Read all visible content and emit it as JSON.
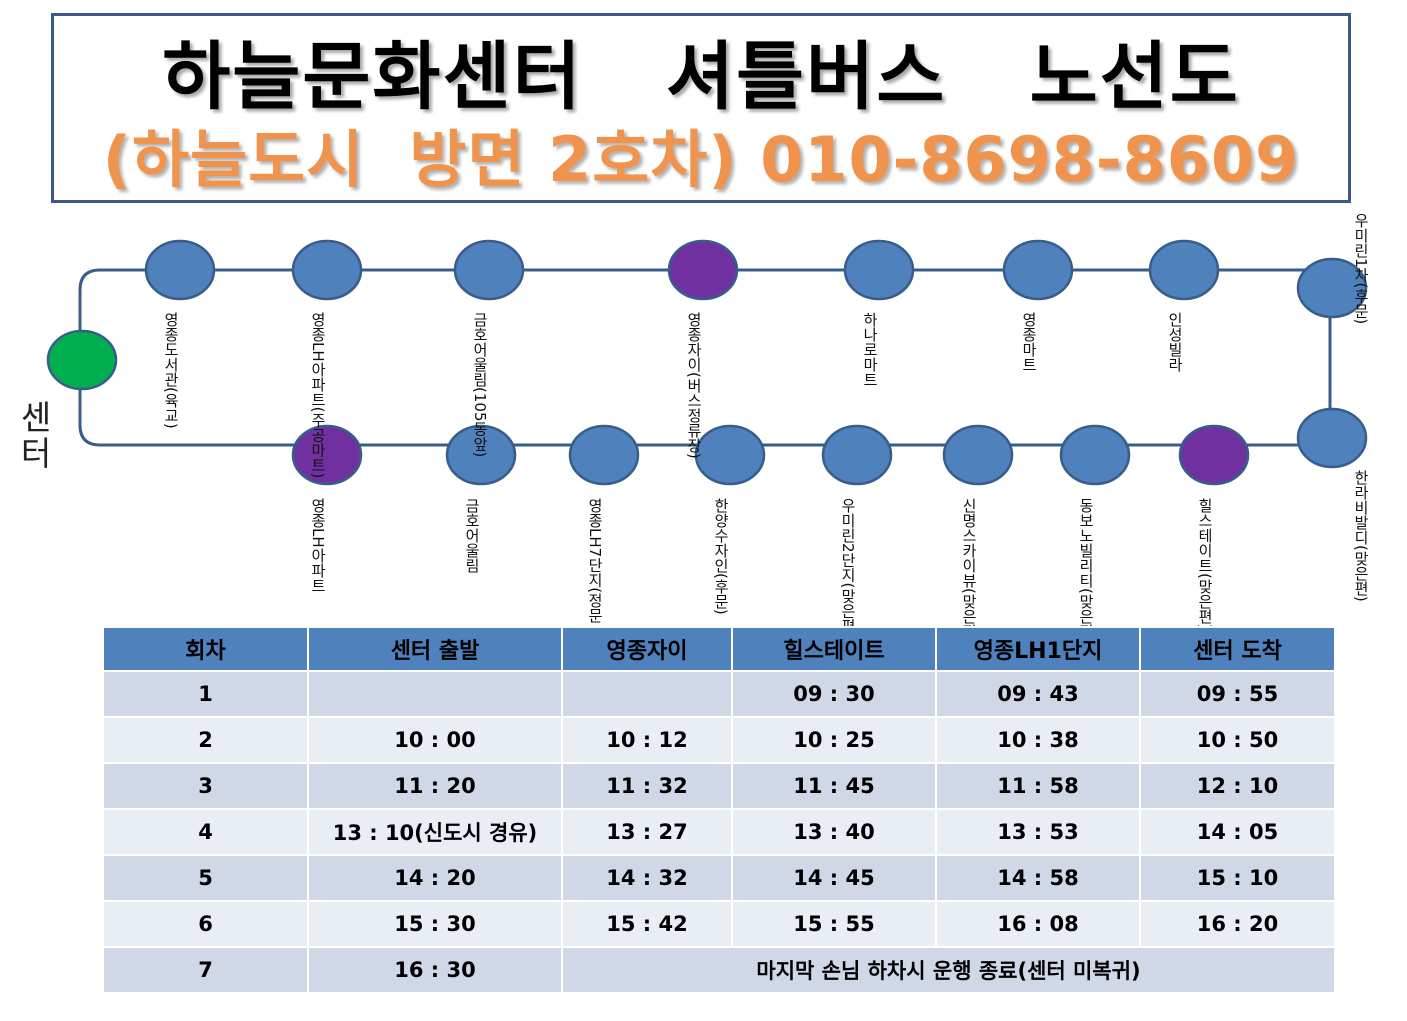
{
  "title": {
    "main": "하늘문화센터   셔틀버스   노선도",
    "sub": "(하늘도시  방면 2호차) 010-8698-8609"
  },
  "colors": {
    "stop": "#4f81bd",
    "hub": "#00b050",
    "timed_stop": "#7030a0",
    "route_line": "#385d8a",
    "title_sub": "#f0944d",
    "table_header": "#4f81bd"
  },
  "route": {
    "center_label": "센터",
    "top_stops": [
      {
        "name": "영종도서관",
        "note": "(육교)",
        "timed": false
      },
      {
        "name": "영종LH아파트",
        "note": "(주공마트)",
        "timed": false
      },
      {
        "name": "금호어울림",
        "note": "(105동앞)",
        "timed": false
      },
      {
        "name": "영종자이",
        "note": "(버스정류장)",
        "timed": true
      },
      {
        "name": "하나로마트",
        "note": "",
        "timed": false
      },
      {
        "name": "영종마트",
        "note": "",
        "timed": false
      },
      {
        "name": "인성빌라",
        "note": "",
        "timed": false
      }
    ],
    "right_stops": [
      {
        "name": "우미린1차",
        "note": "(후문)",
        "timed": false
      },
      {
        "name": "한라비발디",
        "note": "(맞은편)",
        "timed": false
      }
    ],
    "bottom_stops": [
      {
        "name": "영종LH아파트",
        "note": "",
        "timed": true
      },
      {
        "name": "금호어울림",
        "note": "",
        "timed": false
      },
      {
        "name": "영종LH7단지",
        "note": "(정문 맞은편)",
        "timed": false
      },
      {
        "name": "한양수자인",
        "note": "(후문)",
        "timed": false
      },
      {
        "name": "우미린2단지",
        "note": "(맞은편)",
        "timed": false
      },
      {
        "name": "신명스카이뷰",
        "note": "(맞은편)",
        "timed": false
      },
      {
        "name": "동보노빌리티",
        "note": "(맞은편)",
        "timed": false
      },
      {
        "name": "힐스테이트",
        "note": "(맞은편)",
        "timed": true
      }
    ]
  },
  "schedule": {
    "headers": [
      "회차",
      "센터 출발",
      "영종자이",
      "힐스테이트",
      "영종LH1단지",
      "센터 도착"
    ],
    "rows": [
      [
        "1",
        "",
        "",
        "09 : 30",
        "09 : 43",
        "09 : 55"
      ],
      [
        "2",
        "10 : 00",
        "10 : 12",
        "10 : 25",
        "10 : 38",
        "10 : 50"
      ],
      [
        "3",
        "11 : 20",
        "11 : 32",
        "11 : 45",
        "11 : 58",
        "12 : 10"
      ],
      [
        "4",
        "13 : 10(신도시 경유)",
        "13 : 27",
        "13 : 40",
        "13 : 53",
        "14 : 05"
      ],
      [
        "5",
        "14 : 20",
        "14 : 32",
        "14 : 45",
        "14 : 58",
        "15 : 10"
      ],
      [
        "6",
        "15 : 30",
        "15 : 42",
        "15 : 55",
        "16 : 08",
        "16 : 20"
      ]
    ],
    "last_row": {
      "trip": "7",
      "depart": "16 : 30",
      "note": "마지막  손님  하차시 운행 종료(센터 미복귀)"
    }
  }
}
